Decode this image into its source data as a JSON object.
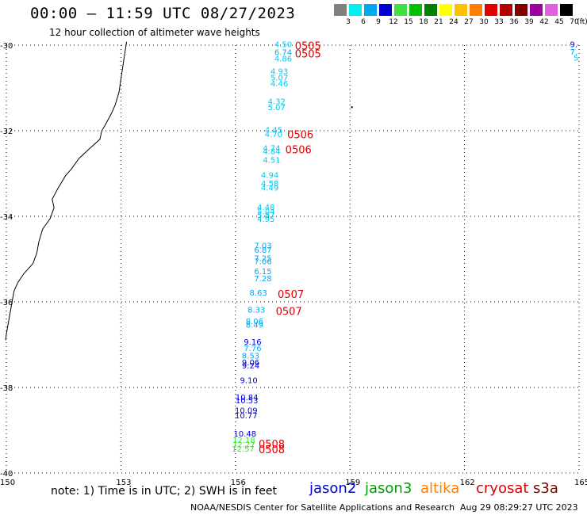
{
  "header": {
    "title": "00:00 – 11:59 UTC 08/27/2023",
    "subtitle": "12 hour collection of altimeter wave heights"
  },
  "legend": {
    "unit": "(ft)",
    "bins": [
      {
        "label": "3",
        "color": "#808080"
      },
      {
        "label": "6",
        "color": "#00f0f0"
      },
      {
        "label": "9",
        "color": "#00a8f0"
      },
      {
        "label": "12",
        "color": "#0000d0"
      },
      {
        "label": "15",
        "color": "#40e040"
      },
      {
        "label": "18",
        "color": "#00c000"
      },
      {
        "label": "21",
        "color": "#008000"
      },
      {
        "label": "24",
        "color": "#ffff00"
      },
      {
        "label": "27",
        "color": "#ffc000"
      },
      {
        "label": "30",
        "color": "#ff8000"
      },
      {
        "label": "33",
        "color": "#e00000"
      },
      {
        "label": "36",
        "color": "#b00000"
      },
      {
        "label": "39",
        "color": "#800000"
      },
      {
        "label": "42",
        "color": "#a000a0"
      },
      {
        "label": "45",
        "color": "#e060e0"
      },
      {
        "label": "70",
        "color": "#000000"
      }
    ]
  },
  "axes": {
    "lon_labels": [
      "150",
      "153",
      "156",
      "159",
      "162",
      "165"
    ],
    "lat_labels": [
      "-30",
      "-32",
      "-34",
      "-36",
      "-38",
      "-40"
    ]
  },
  "observations": [
    {
      "v": "4.50",
      "c": "#00c8f0",
      "lon": 157.25,
      "lat": -30.05
    },
    {
      "v": "6.74",
      "c": "#00a8f0",
      "lon": 157.25,
      "lat": -30.23
    },
    {
      "v": "4.86",
      "c": "#00c8f0",
      "lon": 157.25,
      "lat": -30.38
    },
    {
      "v": "4.93",
      "c": "#00c8f0",
      "lon": 157.15,
      "lat": -30.68
    },
    {
      "v": "5.07",
      "c": "#00c8f0",
      "lon": 157.15,
      "lat": -30.82
    },
    {
      "v": "4.46",
      "c": "#00c8f0",
      "lon": 157.15,
      "lat": -30.96
    },
    {
      "v": "4.32",
      "c": "#00c8f0",
      "lon": 157.08,
      "lat": -31.38
    },
    {
      "v": "5.07",
      "c": "#00c8f0",
      "lon": 157.08,
      "lat": -31.52
    },
    {
      "v": "4.45",
      "c": "#00c8f0",
      "lon": 157.0,
      "lat": -32.05
    },
    {
      "v": "4.70",
      "c": "#00c8f0",
      "lon": 157.0,
      "lat": -32.15
    },
    {
      "v": "4.74",
      "c": "#00c8f0",
      "lon": 156.95,
      "lat": -32.47
    },
    {
      "v": "4.84",
      "c": "#00c8f0",
      "lon": 156.95,
      "lat": -32.55
    },
    {
      "v": "4.51",
      "c": "#00c8f0",
      "lon": 156.95,
      "lat": -32.75
    },
    {
      "v": "4.94",
      "c": "#00c8f0",
      "lon": 156.9,
      "lat": -33.1
    },
    {
      "v": "4.58",
      "c": "#00c8f0",
      "lon": 156.9,
      "lat": -33.3
    },
    {
      "v": "4.49",
      "c": "#00c8f0",
      "lon": 156.9,
      "lat": -33.4
    },
    {
      "v": "4.48",
      "c": "#00c8f0",
      "lon": 156.8,
      "lat": -33.85
    },
    {
      "v": "5.04",
      "c": "#00c8f0",
      "lon": 156.8,
      "lat": -33.95
    },
    {
      "v": "5.87",
      "c": "#00c8f0",
      "lon": 156.8,
      "lat": -34.04
    },
    {
      "v": "4.95",
      "c": "#00c8f0",
      "lon": 156.8,
      "lat": -34.13
    },
    {
      "v": "7.03",
      "c": "#00a8f0",
      "lon": 156.72,
      "lat": -34.75
    },
    {
      "v": "6.87",
      "c": "#00a8f0",
      "lon": 156.72,
      "lat": -34.85
    },
    {
      "v": "7.25",
      "c": "#00a8f0",
      "lon": 156.72,
      "lat": -35.05
    },
    {
      "v": "7.06",
      "c": "#00a8f0",
      "lon": 156.72,
      "lat": -35.12
    },
    {
      "v": "6.15",
      "c": "#00a8f0",
      "lon": 156.72,
      "lat": -35.35
    },
    {
      "v": "7.28",
      "c": "#00a8f0",
      "lon": 156.72,
      "lat": -35.52
    },
    {
      "v": "8.63",
      "c": "#00a8f0",
      "lon": 156.6,
      "lat": -35.85
    },
    {
      "v": "8.33",
      "c": "#00a8f0",
      "lon": 156.55,
      "lat": -36.25
    },
    {
      "v": "8.06",
      "c": "#00a8f0",
      "lon": 156.5,
      "lat": -36.52
    },
    {
      "v": "8.49",
      "c": "#00a8f0",
      "lon": 156.5,
      "lat": -36.6
    },
    {
      "v": "9.16",
      "c": "#0000d0",
      "lon": 156.45,
      "lat": -37.0
    },
    {
      "v": "7.76",
      "c": "#00a8f0",
      "lon": 156.45,
      "lat": -37.15
    },
    {
      "v": "8.53",
      "c": "#00a8f0",
      "lon": 156.4,
      "lat": -37.32
    },
    {
      "v": "9.06",
      "c": "#0000d0",
      "lon": 156.4,
      "lat": -37.48
    },
    {
      "v": "9.24",
      "c": "#0000d0",
      "lon": 156.4,
      "lat": -37.56
    },
    {
      "v": "9.10",
      "c": "#0000d0",
      "lon": 156.35,
      "lat": -37.9
    },
    {
      "v": "10.84",
      "c": "#0000d0",
      "lon": 156.3,
      "lat": -38.3
    },
    {
      "v": "10.53",
      "c": "#0000d0",
      "lon": 156.3,
      "lat": -38.37
    },
    {
      "v": "10.09",
      "c": "#0000d0",
      "lon": 156.28,
      "lat": -38.6
    },
    {
      "v": "10.77",
      "c": "#0000d0",
      "lon": 156.28,
      "lat": -38.72
    },
    {
      "v": "10.48",
      "c": "#0000d0",
      "lon": 156.25,
      "lat": -39.15
    },
    {
      "v": "12.18",
      "c": "#40e040",
      "lon": 156.22,
      "lat": -39.3
    },
    {
      "v": "12.27",
      "c": "#40e040",
      "lon": 156.22,
      "lat": -39.4
    },
    {
      "v": "12.57",
      "c": "#40e040",
      "lon": 156.2,
      "lat": -39.5
    },
    {
      "v": "9.",
      "c": "#0000d0",
      "lon": 164.86,
      "lat": -30.05
    },
    {
      "v": "7.",
      "c": "#00a8f0",
      "lon": 164.86,
      "lat": -30.22
    },
    {
      "v": "5",
      "c": "#00c8f0",
      "lon": 164.92,
      "lat": -30.36
    }
  ],
  "time_tags": [
    {
      "t": "0505",
      "lon": 157.9,
      "lat": -30.05
    },
    {
      "t": "0505",
      "lon": 157.9,
      "lat": -30.23
    },
    {
      "t": "0506",
      "lon": 157.7,
      "lat": -32.12
    },
    {
      "t": "0506",
      "lon": 157.65,
      "lat": -32.47
    },
    {
      "t": "0507",
      "lon": 157.45,
      "lat": -35.85
    },
    {
      "t": "0507",
      "lon": 157.4,
      "lat": -36.25
    },
    {
      "t": "0508",
      "lon": 156.95,
      "lat": -39.35
    },
    {
      "t": "0508",
      "lon": 156.95,
      "lat": -39.48
    }
  ],
  "coast": [
    [
      153.15,
      -29.92
    ],
    [
      153.1,
      -30.2
    ],
    [
      153.05,
      -30.5
    ],
    [
      153.0,
      -30.8
    ],
    [
      152.95,
      -31.1
    ],
    [
      152.85,
      -31.4
    ],
    [
      152.75,
      -31.6
    ],
    [
      152.6,
      -31.85
    ],
    [
      152.5,
      -32.0
    ],
    [
      152.45,
      -32.2
    ],
    [
      152.2,
      -32.4
    ],
    [
      151.9,
      -32.65
    ],
    [
      151.7,
      -32.9
    ],
    [
      151.55,
      -33.05
    ],
    [
      151.35,
      -33.35
    ],
    [
      151.2,
      -33.6
    ],
    [
      151.25,
      -33.8
    ],
    [
      151.15,
      -34.05
    ],
    [
      150.95,
      -34.3
    ],
    [
      150.85,
      -34.6
    ],
    [
      150.8,
      -34.85
    ],
    [
      150.7,
      -35.1
    ],
    [
      150.45,
      -35.35
    ],
    [
      150.3,
      -35.55
    ],
    [
      150.2,
      -35.75
    ],
    [
      150.15,
      -36.0
    ],
    [
      150.1,
      -36.25
    ],
    [
      150.05,
      -36.5
    ],
    [
      150.0,
      -36.75
    ],
    [
      149.98,
      -36.9
    ]
  ],
  "footer": {
    "note": "note: 1) Time is in UTC; 2) SWH is in feet",
    "satellites": [
      {
        "name": "jason2",
        "color": "#0000d0"
      },
      {
        "name": "jason3",
        "color": "#00a000"
      },
      {
        "name": "altika",
        "color": "#ff8000"
      },
      {
        "name": "cryosat",
        "color": "#e00000"
      },
      {
        "name": "s3a",
        "color": "#800000"
      }
    ],
    "credit": "NOAA/NESDIS Center for Satellite Applications and Research",
    "generated": "Aug 29 08:29:27 UTC 2023"
  }
}
